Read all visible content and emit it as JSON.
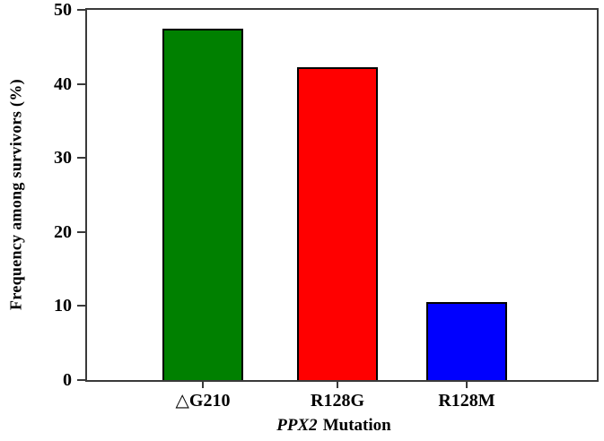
{
  "chart_data": {
    "type": "bar",
    "title": "",
    "categories": [
      "△G210",
      "R128G",
      "R128M"
    ],
    "values": [
      47.4,
      42.3,
      10.5
    ],
    "bar_colors": [
      "#008000",
      "#ff0000",
      "#0000ff"
    ],
    "bar_border_color": "#000000",
    "xlabel_italic": "PPX2",
    "xlabel_rest": "Mutation",
    "ylabel": "Frequency among survivors (%)",
    "ylim": [
      0,
      50
    ],
    "yticks": [
      0,
      10,
      20,
      30,
      40,
      50
    ],
    "grid": false,
    "legend": "none",
    "background": "#ffffff",
    "axis_color": "#3a3a3a",
    "text_color": "#000000"
  }
}
